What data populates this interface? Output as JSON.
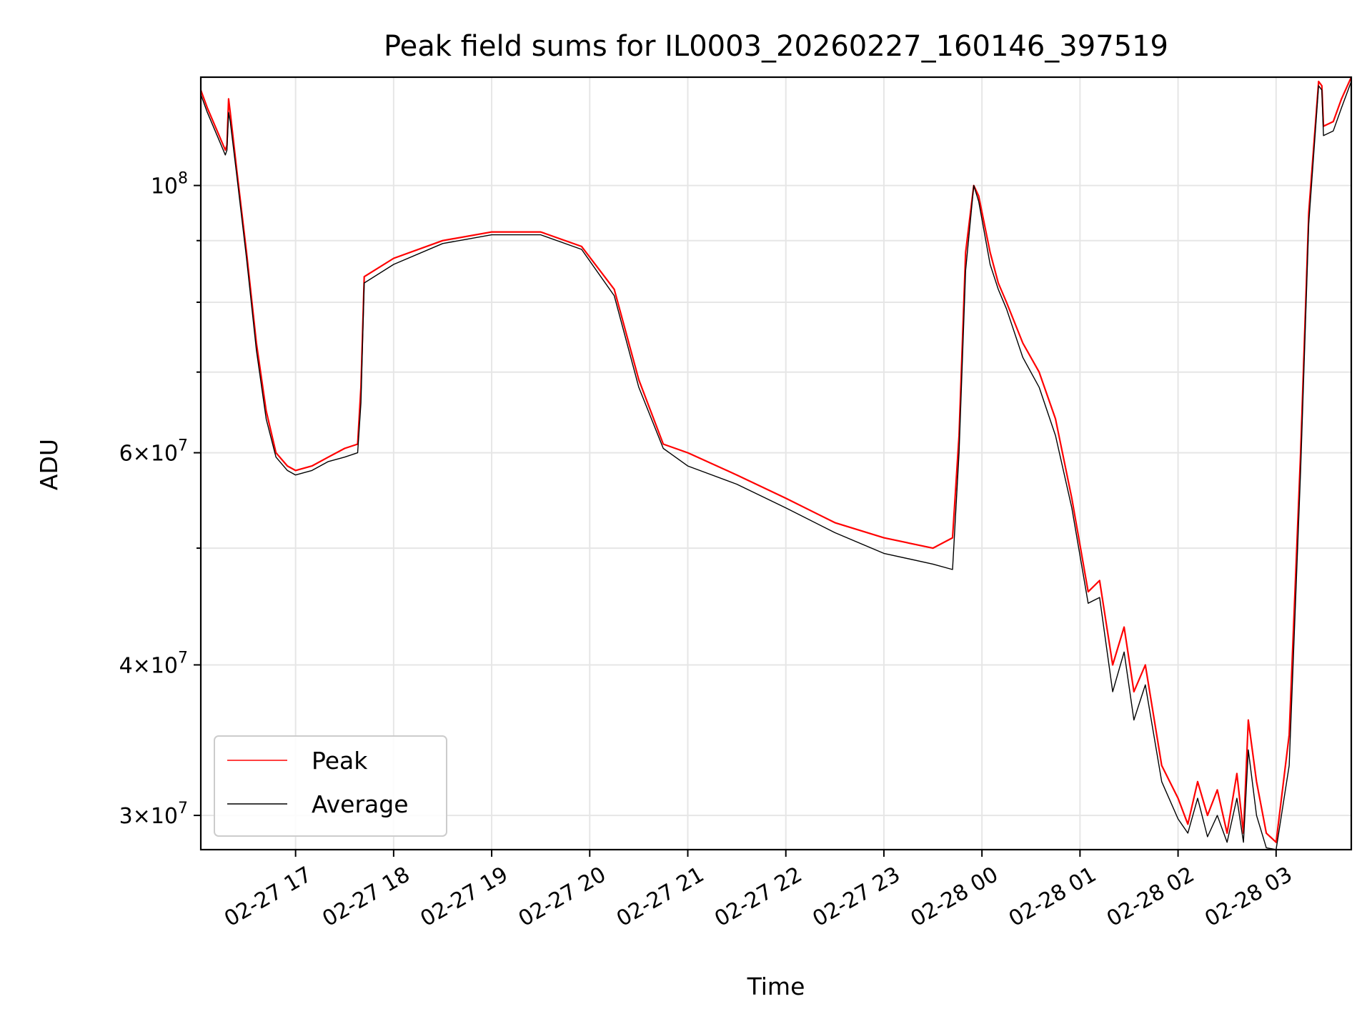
{
  "chart_data": {
    "type": "line",
    "title": "Peak field sums for IL0003_20260227_160146_397519",
    "xlabel": "Time",
    "ylabel": "ADU",
    "y_scale": "log",
    "ylim": [
      28100000,
      123000000
    ],
    "xlim": [
      "2026-02-27 16:02",
      "2026-02-28 03:46"
    ],
    "x_ticks": [
      "02-27 17",
      "02-27 18",
      "02-27 19",
      "02-27 20",
      "02-27 21",
      "02-27 22",
      "02-27 23",
      "02-28 00",
      "02-28 01",
      "02-28 02",
      "02-28 03"
    ],
    "y_ticks_major": [
      {
        "value": 30000000,
        "mantissa": "3",
        "exponent": "7"
      },
      {
        "value": 40000000,
        "mantissa": "4",
        "exponent": "7"
      },
      {
        "value": 60000000,
        "mantissa": "6",
        "exponent": "7"
      },
      {
        "value": 100000000,
        "mantissa": "",
        "exponent": "8"
      }
    ],
    "y_ticks_minor": [
      50000000,
      70000000,
      80000000,
      90000000
    ],
    "grid": true,
    "legend_position": "lower-left",
    "series": [
      {
        "name": "Peak",
        "color": "#ff0000",
        "x": [
          "2026-02-27 16:02",
          "2026-02-27 16:06",
          "2026-02-27 16:12",
          "2026-02-27 16:17",
          "2026-02-27 16:18",
          "2026-02-27 16:19",
          "2026-02-27 16:20",
          "2026-02-27 16:24",
          "2026-02-27 16:30",
          "2026-02-27 16:36",
          "2026-02-27 16:42",
          "2026-02-27 16:48",
          "2026-02-27 16:55",
          "2026-02-27 17:00",
          "2026-02-27 17:10",
          "2026-02-27 17:20",
          "2026-02-27 17:30",
          "2026-02-27 17:38",
          "2026-02-27 17:40",
          "2026-02-27 17:42",
          "2026-02-27 18:00",
          "2026-02-27 18:30",
          "2026-02-27 19:00",
          "2026-02-27 19:30",
          "2026-02-27 19:55",
          "2026-02-27 20:15",
          "2026-02-27 20:30",
          "2026-02-27 20:45",
          "2026-02-27 21:00",
          "2026-02-27 21:30",
          "2026-02-27 22:00",
          "2026-02-27 22:30",
          "2026-02-27 23:00",
          "2026-02-27 23:30",
          "2026-02-27 23:42",
          "2026-02-27 23:46",
          "2026-02-27 23:50",
          "2026-02-27 23:55",
          "2026-02-27 23:58",
          "2026-02-28 00:05",
          "2026-02-28 00:10",
          "2026-02-28 00:15",
          "2026-02-28 00:25",
          "2026-02-28 00:35",
          "2026-02-28 00:45",
          "2026-02-28 00:55",
          "2026-02-28 01:05",
          "2026-02-28 01:12",
          "2026-02-28 01:20",
          "2026-02-28 01:27",
          "2026-02-28 01:33",
          "2026-02-28 01:40",
          "2026-02-28 01:50",
          "2026-02-28 02:00",
          "2026-02-28 02:06",
          "2026-02-28 02:12",
          "2026-02-28 02:18",
          "2026-02-28 02:24",
          "2026-02-28 02:30",
          "2026-02-28 02:36",
          "2026-02-28 02:40",
          "2026-02-28 02:43",
          "2026-02-28 02:48",
          "2026-02-28 02:54",
          "2026-02-28 03:00",
          "2026-02-28 03:08",
          "2026-02-28 03:15",
          "2026-02-28 03:20",
          "2026-02-28 03:26",
          "2026-02-28 03:28",
          "2026-02-28 03:29",
          "2026-02-28 03:35",
          "2026-02-28 03:40",
          "2026-02-28 03:46"
        ],
        "values": [
          120000000,
          116000000,
          111000000,
          107000000,
          108000000,
          118000000,
          115000000,
          103000000,
          88000000,
          74000000,
          65000000,
          60000000,
          58500000,
          58000000,
          58500000,
          59500000,
          60500000,
          61000000,
          68000000,
          84000000,
          87000000,
          90000000,
          91500000,
          91500000,
          89000000,
          82000000,
          69000000,
          61000000,
          60000000,
          57500000,
          55000000,
          52500000,
          51000000,
          50000000,
          51000000,
          62000000,
          88000000,
          100000000,
          98000000,
          88000000,
          83000000,
          80000000,
          74000000,
          70000000,
          64000000,
          55000000,
          46000000,
          47000000,
          40000000,
          43000000,
          38000000,
          40000000,
          33000000,
          31000000,
          29500000,
          32000000,
          30000000,
          31500000,
          29000000,
          32500000,
          29000000,
          36000000,
          32000000,
          29000000,
          28500000,
          35000000,
          60000000,
          95000000,
          122000000,
          121000000,
          112000000,
          113000000,
          118000000,
          123000000
        ]
      },
      {
        "name": "Average",
        "color": "#000000",
        "x": [
          "2026-02-27 16:02",
          "2026-02-27 16:06",
          "2026-02-27 16:12",
          "2026-02-27 16:17",
          "2026-02-27 16:18",
          "2026-02-27 16:19",
          "2026-02-27 16:20",
          "2026-02-27 16:24",
          "2026-02-27 16:30",
          "2026-02-27 16:36",
          "2026-02-27 16:42",
          "2026-02-27 16:48",
          "2026-02-27 16:55",
          "2026-02-27 17:00",
          "2026-02-27 17:10",
          "2026-02-27 17:20",
          "2026-02-27 17:30",
          "2026-02-27 17:38",
          "2026-02-27 17:40",
          "2026-02-27 17:42",
          "2026-02-27 18:00",
          "2026-02-27 18:30",
          "2026-02-27 19:00",
          "2026-02-27 19:30",
          "2026-02-27 19:55",
          "2026-02-27 20:15",
          "2026-02-27 20:30",
          "2026-02-27 20:45",
          "2026-02-27 21:00",
          "2026-02-27 21:30",
          "2026-02-27 22:00",
          "2026-02-27 22:30",
          "2026-02-27 23:00",
          "2026-02-27 23:30",
          "2026-02-27 23:42",
          "2026-02-27 23:46",
          "2026-02-27 23:50",
          "2026-02-27 23:55",
          "2026-02-27 23:58",
          "2026-02-28 00:05",
          "2026-02-28 00:10",
          "2026-02-28 00:15",
          "2026-02-28 00:25",
          "2026-02-28 00:35",
          "2026-02-28 00:45",
          "2026-02-28 00:55",
          "2026-02-28 01:05",
          "2026-02-28 01:12",
          "2026-02-28 01:20",
          "2026-02-28 01:27",
          "2026-02-28 01:33",
          "2026-02-28 01:40",
          "2026-02-28 01:50",
          "2026-02-28 02:00",
          "2026-02-28 02:06",
          "2026-02-28 02:12",
          "2026-02-28 02:18",
          "2026-02-28 02:24",
          "2026-02-28 02:30",
          "2026-02-28 02:36",
          "2026-02-28 02:40",
          "2026-02-28 02:43",
          "2026-02-28 02:48",
          "2026-02-28 02:54",
          "2026-02-28 03:00",
          "2026-02-28 03:08",
          "2026-02-28 03:15",
          "2026-02-28 03:20",
          "2026-02-28 03:26",
          "2026-02-28 03:28",
          "2026-02-28 03:29",
          "2026-02-28 03:35",
          "2026-02-28 03:40",
          "2026-02-28 03:46"
        ],
        "values": [
          119000000,
          115000000,
          110000000,
          106000000,
          107000000,
          115000000,
          113000000,
          102000000,
          87000000,
          73000000,
          64000000,
          59500000,
          58000000,
          57500000,
          58000000,
          59000000,
          59500000,
          60000000,
          66000000,
          83000000,
          86000000,
          89500000,
          91000000,
          91000000,
          88500000,
          81000000,
          68000000,
          60500000,
          58500000,
          56500000,
          54000000,
          51500000,
          49500000,
          48500000,
          48000000,
          60000000,
          85000000,
          100000000,
          97000000,
          86000000,
          82000000,
          79000000,
          72000000,
          68000000,
          62000000,
          54000000,
          45000000,
          45500000,
          38000000,
          41000000,
          36000000,
          38500000,
          32000000,
          29800000,
          29000000,
          31000000,
          28800000,
          30000000,
          28500000,
          31000000,
          28500000,
          34000000,
          30000000,
          28200000,
          28100000,
          33000000,
          58000000,
          93000000,
          121000000,
          120000000,
          110000000,
          111000000,
          116000000,
          122000000
        ]
      }
    ]
  },
  "legend": {
    "peak_label": "Peak",
    "average_label": "Average"
  }
}
